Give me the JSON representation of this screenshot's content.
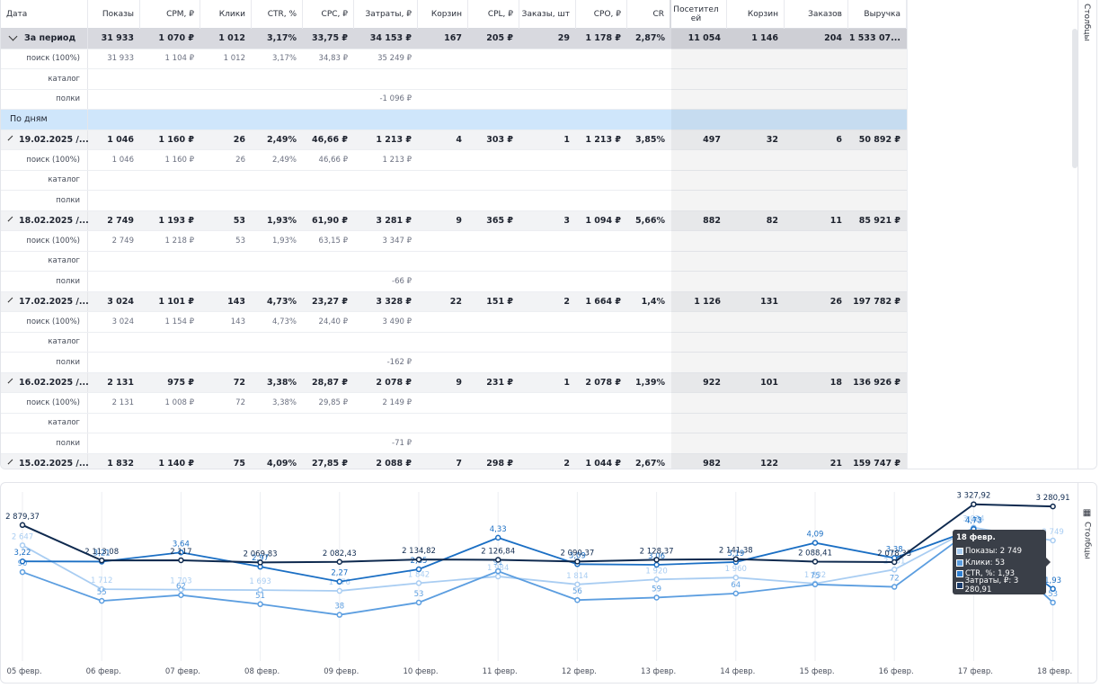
{
  "table": {
    "columns": [
      "Дата",
      "Показы",
      "CPM, ₽",
      "Клики",
      "CTR, %",
      "CPC, ₽",
      "Затраты, ₽",
      "Корзин",
      "CPL, ₽",
      "Заказы, шт",
      "CPO, ₽",
      "CR",
      "Посетител ей",
      "Корзин",
      "Заказов",
      "Выручка"
    ],
    "total": {
      "label": "За период",
      "values": [
        "31 933",
        "1 070 ₽",
        "1 012",
        "3,17%",
        "33,75 ₽",
        "34 153 ₽",
        "167",
        "205 ₽",
        "29",
        "1 178 ₽",
        "2,87%",
        "11 054",
        "1 146",
        "204",
        "1 533 07..."
      ]
    },
    "total_sub": [
      {
        "label": "поиск (100%)",
        "values": [
          "31 933",
          "1 104 ₽",
          "1 012",
          "3,17%",
          "34,83 ₽",
          "35 249 ₽",
          "",
          "",
          "",
          "",
          "",
          "",
          "",
          "",
          ""
        ]
      },
      {
        "label": "каталог",
        "values": [
          "",
          "",
          "",
          "",
          "",
          "",
          "",
          "",
          "",
          "",
          "",
          "",
          "",
          "",
          ""
        ]
      },
      {
        "label": "полки",
        "values": [
          "",
          "",
          "",
          "",
          "",
          "-1 096 ₽",
          "",
          "",
          "",
          "",
          "",
          "",
          "",
          "",
          ""
        ]
      }
    ],
    "group_label": "По дням",
    "days": [
      {
        "label": "19.02.2025 /...",
        "values": [
          "1 046",
          "1 160 ₽",
          "26",
          "2,49%",
          "46,66 ₽",
          "1 213 ₽",
          "4",
          "303 ₽",
          "1",
          "1 213 ₽",
          "3,85%",
          "497",
          "32",
          "6",
          "50 892 ₽"
        ],
        "sub": [
          {
            "label": "поиск (100%)",
            "values": [
              "1 046",
              "1 160 ₽",
              "26",
              "2,49%",
              "46,66 ₽",
              "1 213 ₽",
              "",
              "",
              "",
              "",
              "",
              "",
              "",
              "",
              ""
            ]
          },
          {
            "label": "каталог",
            "values": [
              "",
              "",
              "",
              "",
              "",
              "",
              "",
              "",
              "",
              "",
              "",
              "",
              "",
              "",
              ""
            ]
          },
          {
            "label": "полки",
            "values": [
              "",
              "",
              "",
              "",
              "",
              "",
              "",
              "",
              "",
              "",
              "",
              "",
              "",
              "",
              ""
            ]
          }
        ]
      },
      {
        "label": "18.02.2025 /...",
        "values": [
          "2 749",
          "1 193 ₽",
          "53",
          "1,93%",
          "61,90 ₽",
          "3 281 ₽",
          "9",
          "365 ₽",
          "3",
          "1 094 ₽",
          "5,66%",
          "882",
          "82",
          "11",
          "85 921 ₽"
        ],
        "sub": [
          {
            "label": "поиск (100%)",
            "values": [
              "2 749",
              "1 218 ₽",
              "53",
              "1,93%",
              "63,15 ₽",
              "3 347 ₽",
              "",
              "",
              "",
              "",
              "",
              "",
              "",
              "",
              ""
            ]
          },
          {
            "label": "каталог",
            "values": [
              "",
              "",
              "",
              "",
              "",
              "",
              "",
              "",
              "",
              "",
              "",
              "",
              "",
              "",
              ""
            ]
          },
          {
            "label": "полки",
            "values": [
              "",
              "",
              "",
              "",
              "",
              "-66 ₽",
              "",
              "",
              "",
              "",
              "",
              "",
              "",
              "",
              ""
            ]
          }
        ]
      },
      {
        "label": "17.02.2025 /...",
        "values": [
          "3 024",
          "1 101 ₽",
          "143",
          "4,73%",
          "23,27 ₽",
          "3 328 ₽",
          "22",
          "151 ₽",
          "2",
          "1 664 ₽",
          "1,4%",
          "1 126",
          "131",
          "26",
          "197 782 ₽"
        ],
        "sub": [
          {
            "label": "поиск (100%)",
            "values": [
              "3 024",
              "1 154 ₽",
              "143",
              "4,73%",
              "24,40 ₽",
              "3 490 ₽",
              "",
              "",
              "",
              "",
              "",
              "",
              "",
              "",
              ""
            ]
          },
          {
            "label": "каталог",
            "values": [
              "",
              "",
              "",
              "",
              "",
              "",
              "",
              "",
              "",
              "",
              "",
              "",
              "",
              "",
              ""
            ]
          },
          {
            "label": "полки",
            "values": [
              "",
              "",
              "",
              "",
              "",
              "-162 ₽",
              "",
              "",
              "",
              "",
              "",
              "",
              "",
              "",
              ""
            ]
          }
        ]
      },
      {
        "label": "16.02.2025 /...",
        "values": [
          "2 131",
          "975 ₽",
          "72",
          "3,38%",
          "28,87 ₽",
          "2 078 ₽",
          "9",
          "231 ₽",
          "1",
          "2 078 ₽",
          "1,39%",
          "922",
          "101",
          "18",
          "136 926 ₽"
        ],
        "sub": [
          {
            "label": "поиск (100%)",
            "values": [
              "2 131",
              "1 008 ₽",
              "72",
              "3,38%",
              "29,85 ₽",
              "2 149 ₽",
              "",
              "",
              "",
              "",
              "",
              "",
              "",
              "",
              ""
            ]
          },
          {
            "label": "каталог",
            "values": [
              "",
              "",
              "",
              "",
              "",
              "",
              "",
              "",
              "",
              "",
              "",
              "",
              "",
              "",
              ""
            ]
          },
          {
            "label": "полки",
            "values": [
              "",
              "",
              "",
              "",
              "",
              "-71 ₽",
              "",
              "",
              "",
              "",
              "",
              "",
              "",
              "",
              ""
            ]
          }
        ]
      },
      {
        "label": "15.02.2025 /...",
        "values": [
          "1 832",
          "1 140 ₽",
          "75",
          "4,09%",
          "27,85 ₽",
          "2 088 ₽",
          "7",
          "298 ₽",
          "2",
          "1 044 ₽",
          "2,67%",
          "982",
          "122",
          "21",
          "159 747 ₽"
        ],
        "sub": []
      }
    ],
    "side_label": "Столбцы"
  },
  "chart": {
    "side_label": "Столбцы",
    "tooltip": {
      "title": "18 февр.",
      "lines": [
        {
          "text": "Показы: 2 749",
          "color": "#a9cdf2"
        },
        {
          "text": "Клики: 53",
          "color": "#5c9ee0"
        },
        {
          "text": "CTR, %: 1,93",
          "color": "#2e7fd2"
        },
        {
          "text": "Затраты, ₽: 3 280,91",
          "color": "#1a3c6c"
        }
      ]
    },
    "colors": {
      "impressions": "#a9cdf2",
      "clicks": "#5c9ee0",
      "ctr": "#1b6fc4",
      "spend": "#0f2a4f"
    }
  },
  "chart_data": {
    "type": "line",
    "x": [
      "05 февр.",
      "06 февр.",
      "07 февр.",
      "08 февр.",
      "09 февр.",
      "10 февр.",
      "11 февр.",
      "12 февр.",
      "13 февр.",
      "14 февр.",
      "15 февр.",
      "16 февр.",
      "17 февр.",
      "18 февр."
    ],
    "series": [
      {
        "name": "Показы",
        "values": [
          2647,
          1712,
          1703,
          1693,
          1676,
          1842,
          1984,
          1814,
          1920,
          1960,
          1832,
          2131,
          3024,
          2749
        ],
        "labels": [
          "2 647",
          "1 712",
          "1 703",
          "1 693",
          "1 676",
          "1 842",
          "1 984",
          "1 814",
          "1 920",
          "1 960",
          "1 832",
          "2 131",
          "3 024",
          "2 749"
        ]
      },
      {
        "name": "Клики",
        "values": [
          90,
          55,
          62,
          51,
          38,
          53,
          91,
          56,
          59,
          64,
          75,
          72,
          143,
          53
        ],
        "labels": [
          "90",
          "55",
          "62",
          "51",
          "38",
          "53",
          "91",
          "56",
          "59",
          "64",
          "75",
          "72",
          "143",
          "53"
        ]
      },
      {
        "name": "CTR, %",
        "values": [
          3.22,
          3.21,
          3.64,
          2.97,
          2.27,
          2.85,
          4.33,
          3.09,
          3.06,
          3.19,
          4.09,
          3.38,
          4.73,
          1.93
        ],
        "labels": [
          "3,22",
          "3,21",
          "3,64",
          "2,97",
          "2,27",
          "2,85",
          "4,33",
          "3,09",
          "3,06",
          "3,19",
          "4,09",
          "3,38",
          "4,73",
          "1,93"
        ]
      },
      {
        "name": "Затраты, ₽",
        "values": [
          2879.37,
          2113.08,
          2117,
          2069.83,
          2082.43,
          2134.82,
          2126.84,
          2090.37,
          2128.37,
          2141.38,
          2088.41,
          2078.33,
          3327.92,
          3280.91
        ],
        "labels": [
          "2 879,37",
          "2 113,08",
          "2 117",
          "2 069,83",
          "2 082,43",
          "2 134,82",
          "2 126,84",
          "2 090,37",
          "2 128,37",
          "2 141,38",
          "2 088,41",
          "2 078,33",
          "3 327,92",
          "3 280,91"
        ]
      }
    ]
  }
}
